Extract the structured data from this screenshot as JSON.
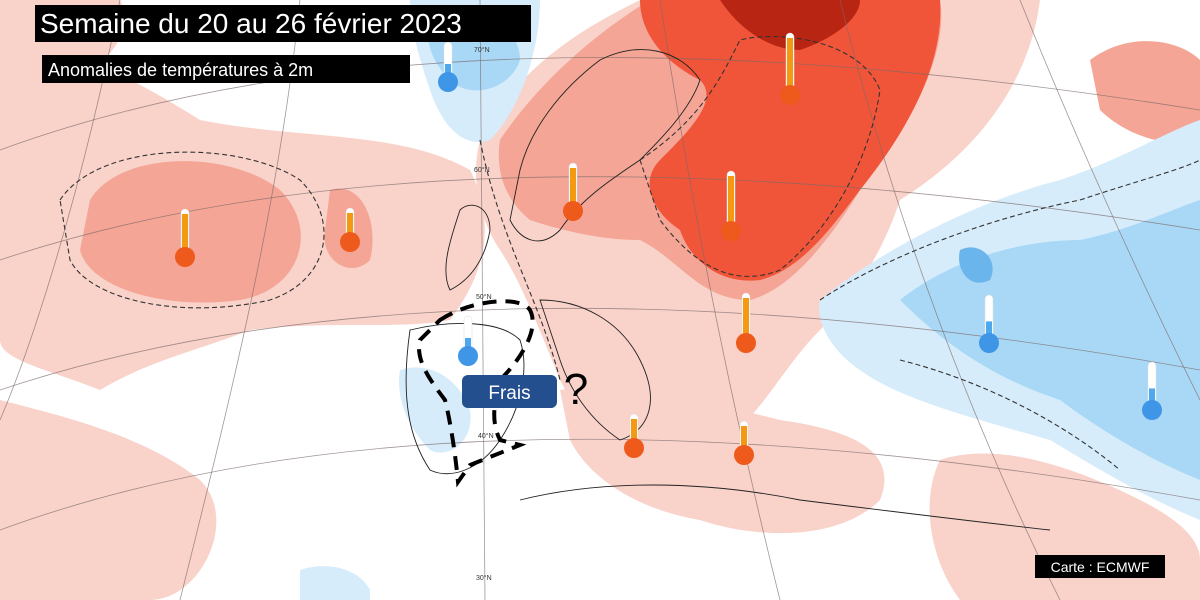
{
  "header": {
    "title": "Semaine du 20 au 26 février 2023",
    "subtitle": "Anomalies de températures à 2m"
  },
  "annotations": {
    "label": "Frais",
    "question": "?"
  },
  "credit": "Carte : ECMWF",
  "latitude_labels": [
    "70°N",
    "60°N",
    "50°N",
    "40°N",
    "30°N"
  ]
}
